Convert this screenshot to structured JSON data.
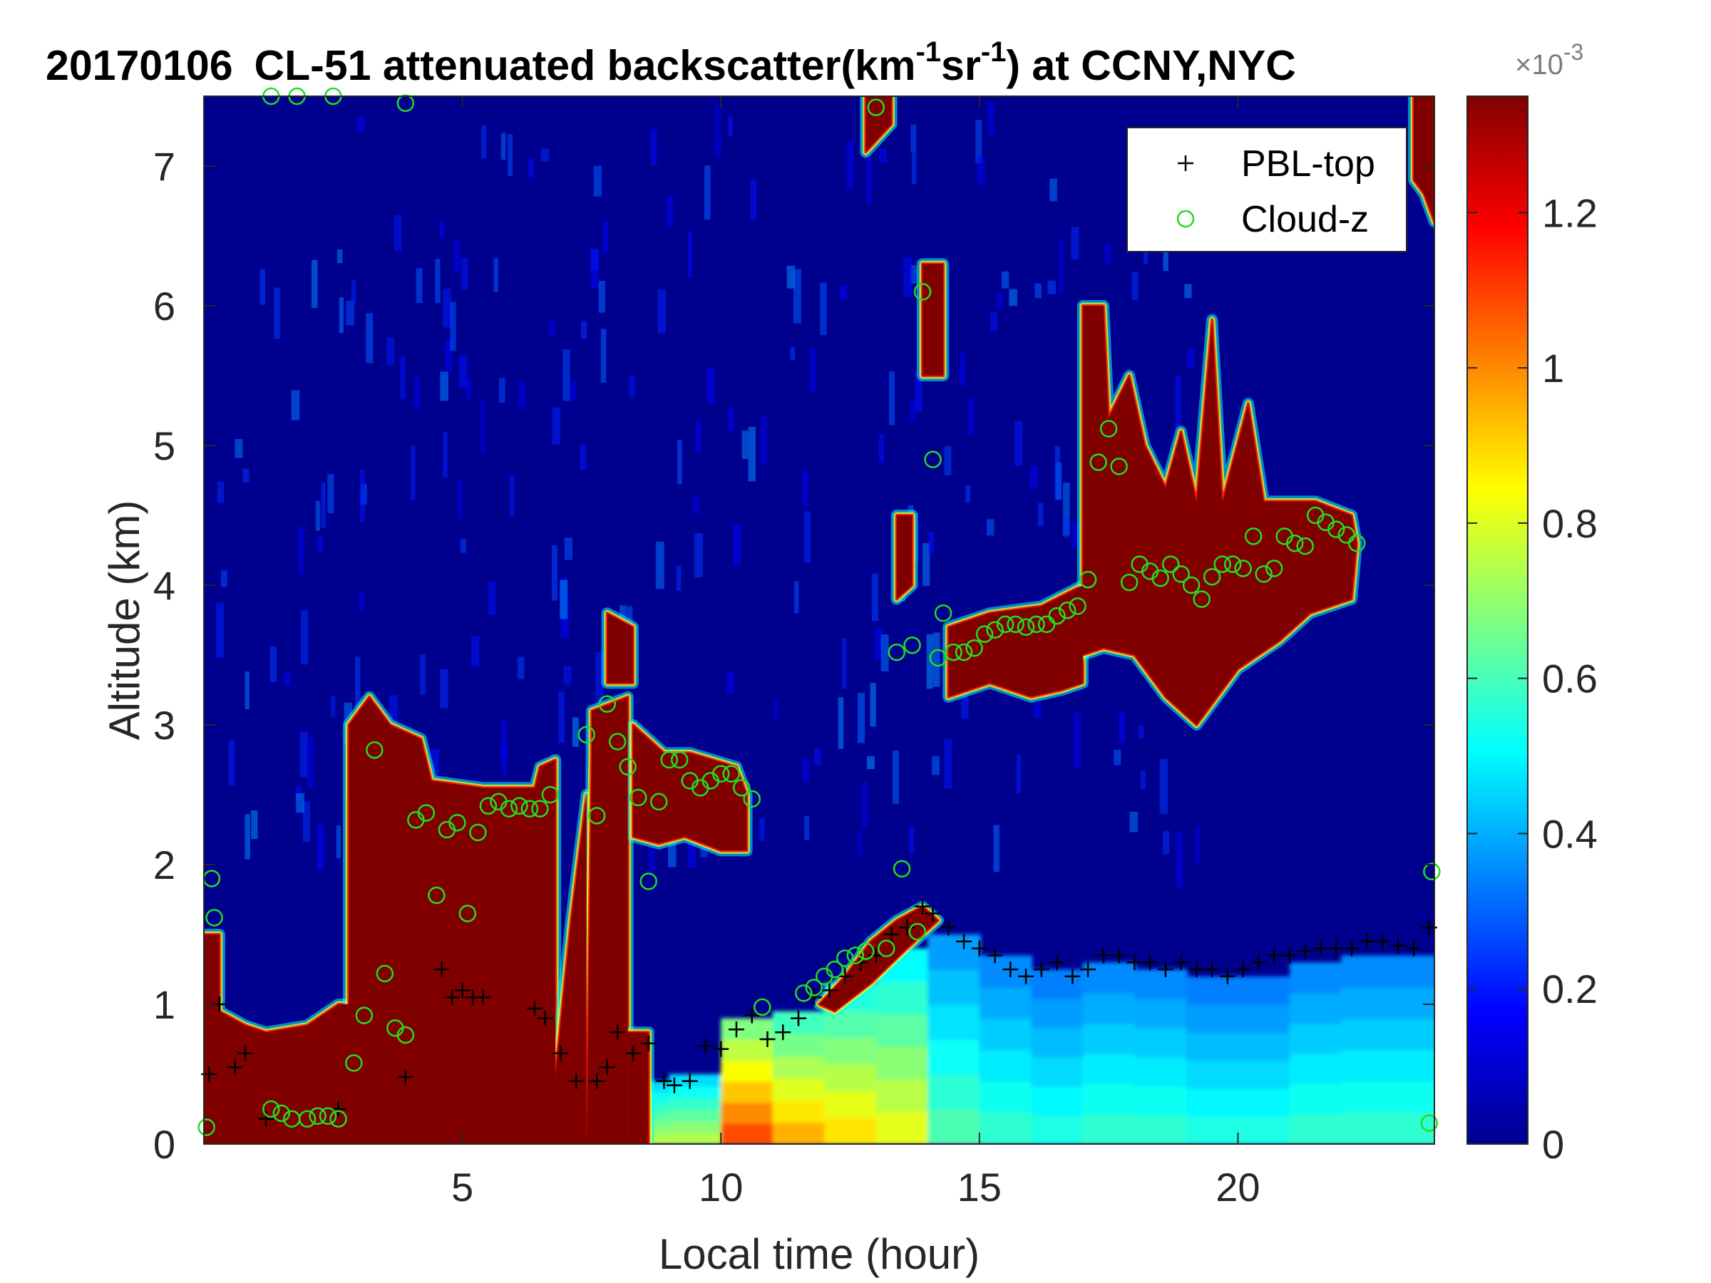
{
  "chart_data": {
    "type": "heatmap",
    "title": {
      "date": "20170106",
      "main": "CL-51 attenuated backscatter(km",
      "sup1": "-1",
      "mid": "sr",
      "sup2": "-1",
      "end": ") at CCNY,NYC"
    },
    "xlabel": "Local time (hour)",
    "ylabel": "Altitude (km)",
    "xlim": [
      0,
      23.8
    ],
    "ylim": [
      0,
      7.5
    ],
    "xticks": [
      5,
      10,
      15,
      20
    ],
    "yticks": [
      0,
      1,
      2,
      3,
      4,
      5,
      6,
      7
    ],
    "colorbar": {
      "colormap": "jet",
      "range": [
        0,
        0.00135
      ],
      "ticks": [
        0,
        0.2,
        0.4,
        0.6,
        0.8,
        1.0,
        1.2
      ],
      "tick_labels": [
        "0",
        "0.2",
        "0.4",
        "0.6",
        "0.8",
        "1",
        "1.2"
      ],
      "multiplier_base": "×10",
      "multiplier_exp": "-3"
    },
    "legend": {
      "position": "top-right",
      "entries": [
        {
          "name": "PBL-top",
          "marker": "+",
          "color": "#000000"
        },
        {
          "name": "Cloud-z",
          "marker": "o",
          "color": "#22dd22"
        }
      ]
    },
    "colors": {
      "background_low": "#00008f",
      "saturated": "#800000",
      "pbl_marker": "#000000",
      "cloud_marker": "#22dd22"
    },
    "aerosol_layer": {
      "description_free": true,
      "hours": [
        8.5,
        9.5,
        10.5,
        11.5,
        12.5,
        13.5,
        14.5,
        15.5,
        16.5,
        17.5,
        18.5,
        19.5,
        20.5,
        21.5,
        22.5,
        23.5
      ],
      "top_km": [
        0.45,
        0.5,
        0.9,
        0.95,
        1.15,
        1.4,
        1.5,
        1.35,
        1.25,
        1.3,
        1.25,
        1.2,
        1.2,
        1.3,
        1.35,
        1.35
      ],
      "intensity": [
        0.55,
        0.55,
        0.8,
        0.7,
        0.65,
        0.6,
        0.45,
        0.42,
        0.4,
        0.42,
        0.42,
        0.4,
        0.4,
        0.42,
        0.42,
        0.42
      ]
    },
    "saturated_regions": [
      {
        "points": [
          [
            0,
            0
          ],
          [
            0,
            1.5
          ],
          [
            0.3,
            1.5
          ],
          [
            0.3,
            0.95
          ],
          [
            0.8,
            0.85
          ],
          [
            1.2,
            0.8
          ],
          [
            2.0,
            0.85
          ],
          [
            2.6,
            1.0
          ],
          [
            2.8,
            1.0
          ],
          [
            2.8,
            0
          ]
        ]
      },
      {
        "points": [
          [
            2.8,
            0
          ],
          [
            2.8,
            3.0
          ],
          [
            3.2,
            3.2
          ],
          [
            3.6,
            3.0
          ],
          [
            4.2,
            2.9
          ],
          [
            4.4,
            2.6
          ],
          [
            5.4,
            2.55
          ],
          [
            6.4,
            2.55
          ],
          [
            6.5,
            2.7
          ],
          [
            6.8,
            2.75
          ],
          [
            6.8,
            0
          ]
        ]
      },
      {
        "points": [
          [
            6.8,
            0
          ],
          [
            6.8,
            0.5
          ],
          [
            7.1,
            1.6
          ],
          [
            7.4,
            2.5
          ],
          [
            7.4,
            0
          ]
        ]
      },
      {
        "points": [
          [
            7.4,
            0
          ],
          [
            7.5,
            2.8
          ],
          [
            7.5,
            3.1
          ],
          [
            8.2,
            3.2
          ],
          [
            8.2,
            0
          ]
        ]
      },
      {
        "points": [
          [
            8.2,
            0
          ],
          [
            8.2,
            0.8
          ],
          [
            8.6,
            0.8
          ],
          [
            8.6,
            0
          ]
        ]
      },
      {
        "points": [
          [
            7.8,
            3.5
          ],
          [
            7.8,
            3.8
          ],
          [
            8.3,
            3.7
          ],
          [
            8.3,
            3.3
          ],
          [
            7.8,
            3.3
          ]
        ]
      },
      {
        "points": [
          [
            8.3,
            3.0
          ],
          [
            8.9,
            2.8
          ],
          [
            9.4,
            2.8
          ],
          [
            10.3,
            2.7
          ],
          [
            10.5,
            2.5
          ],
          [
            10.5,
            2.1
          ],
          [
            10.0,
            2.1
          ],
          [
            9.3,
            2.2
          ],
          [
            8.8,
            2.15
          ],
          [
            8.3,
            2.2
          ]
        ]
      },
      {
        "points": [
          [
            11.9,
            1.0
          ],
          [
            12.4,
            1.2
          ],
          [
            12.9,
            1.45
          ],
          [
            13.4,
            1.6
          ],
          [
            13.9,
            1.7
          ],
          [
            14.2,
            1.6
          ],
          [
            13.6,
            1.4
          ],
          [
            12.9,
            1.15
          ],
          [
            12.2,
            0.95
          ]
        ]
      },
      {
        "points": [
          [
            12.8,
            7.5
          ],
          [
            12.8,
            7.1
          ],
          [
            13.3,
            7.3
          ],
          [
            13.3,
            7.5
          ]
        ]
      },
      {
        "points": [
          [
            13.4,
            4.5
          ],
          [
            13.4,
            3.9
          ],
          [
            13.7,
            4.0
          ],
          [
            13.7,
            4.5
          ]
        ]
      },
      {
        "points": [
          [
            13.9,
            6.3
          ],
          [
            13.9,
            5.5
          ],
          [
            14.3,
            5.5
          ],
          [
            14.3,
            6.3
          ]
        ]
      },
      {
        "points": [
          [
            14.4,
            3.7
          ],
          [
            15.2,
            3.8
          ],
          [
            16.2,
            3.85
          ],
          [
            17.0,
            4.0
          ],
          [
            17.0,
            3.3
          ],
          [
            16.6,
            3.25
          ],
          [
            16.0,
            3.2
          ],
          [
            15.2,
            3.3
          ],
          [
            14.4,
            3.2
          ]
        ]
      },
      {
        "points": [
          [
            17.0,
            4.0
          ],
          [
            17.0,
            6.0
          ],
          [
            17.4,
            6.0
          ],
          [
            17.5,
            5.2
          ],
          [
            17.9,
            5.5
          ],
          [
            18.2,
            5.0
          ],
          [
            18.6,
            4.7
          ],
          [
            18.9,
            5.1
          ],
          [
            19.2,
            4.6
          ],
          [
            19.5,
            5.9
          ],
          [
            19.7,
            4.6
          ],
          [
            20.2,
            5.3
          ],
          [
            20.5,
            4.6
          ],
          [
            21.0,
            4.6
          ],
          [
            21.5,
            4.6
          ],
          [
            22.2,
            4.5
          ],
          [
            22.3,
            4.3
          ],
          [
            22.2,
            3.9
          ],
          [
            21.4,
            3.8
          ],
          [
            20.8,
            3.6
          ],
          [
            20.0,
            3.4
          ],
          [
            19.2,
            3.0
          ],
          [
            18.6,
            3.2
          ],
          [
            18.0,
            3.5
          ],
          [
            17.4,
            3.55
          ],
          [
            17.0,
            3.5
          ]
        ]
      },
      {
        "points": [
          [
            23.4,
            7.5
          ],
          [
            23.4,
            6.9
          ],
          [
            23.6,
            6.8
          ],
          [
            23.8,
            6.6
          ],
          [
            23.8,
            7.5
          ]
        ]
      }
    ],
    "series": [
      {
        "name": "PBL-top",
        "marker": "+",
        "x": [
          0.1,
          0.3,
          0.6,
          0.8,
          1.2,
          2.6,
          3.9,
          4.6,
          4.8,
          5.0,
          5.2,
          5.4,
          6.4,
          6.6,
          6.9,
          7.2,
          7.6,
          7.8,
          8.0,
          8.3,
          8.6,
          8.9,
          9.1,
          9.4,
          9.7,
          10.0,
          10.3,
          10.6,
          10.9,
          11.2,
          11.5,
          11.8,
          12.1,
          12.4,
          12.7,
          13.0,
          13.3,
          13.6,
          13.9,
          14.1,
          14.4,
          14.7,
          15.0,
          15.3,
          15.6,
          15.9,
          16.2,
          16.5,
          16.8,
          17.1,
          17.4,
          17.7,
          18.0,
          18.3,
          18.6,
          18.9,
          19.2,
          19.5,
          19.8,
          20.1,
          20.4,
          20.7,
          21.0,
          21.3,
          21.6,
          21.9,
          22.2,
          22.5,
          22.8,
          23.1,
          23.4,
          23.7
        ],
        "y": [
          0.5,
          1.0,
          0.55,
          0.65,
          0.18,
          0.25,
          0.48,
          1.25,
          1.05,
          1.1,
          1.05,
          1.05,
          0.97,
          0.9,
          0.65,
          0.45,
          0.45,
          0.55,
          0.8,
          0.65,
          0.72,
          0.45,
          0.42,
          0.45,
          0.7,
          0.68,
          0.82,
          0.92,
          0.75,
          0.8,
          0.9,
          1.05,
          1.1,
          1.2,
          1.3,
          1.35,
          1.5,
          1.55,
          1.7,
          1.65,
          1.55,
          1.45,
          1.4,
          1.35,
          1.25,
          1.2,
          1.25,
          1.3,
          1.2,
          1.25,
          1.35,
          1.35,
          1.3,
          1.3,
          1.25,
          1.3,
          1.25,
          1.25,
          1.2,
          1.25,
          1.3,
          1.35,
          1.35,
          1.38,
          1.4,
          1.4,
          1.4,
          1.45,
          1.45,
          1.42,
          1.4,
          1.55
        ]
      },
      {
        "name": "Cloud-z",
        "marker": "o",
        "x": [
          0.05,
          0.15,
          0.2,
          1.3,
          1.5,
          1.7,
          2.0,
          2.2,
          2.4,
          2.6,
          2.9,
          3.1,
          3.3,
          3.5,
          3.7,
          3.9,
          4.1,
          4.3,
          4.5,
          4.7,
          4.9,
          5.1,
          5.3,
          5.5,
          5.7,
          5.9,
          6.1,
          6.3,
          6.5,
          6.7,
          1.3,
          1.8,
          2.5,
          3.9,
          7.4,
          7.6,
          7.8,
          8.0,
          8.2,
          8.4,
          8.6,
          8.8,
          9.0,
          9.2,
          9.4,
          9.6,
          9.8,
          10.0,
          10.2,
          10.4,
          10.6,
          10.8,
          11.6,
          11.8,
          12.0,
          12.2,
          12.4,
          12.6,
          12.8,
          13.0,
          13.2,
          13.5,
          13.7,
          13.9,
          14.1,
          14.3,
          14.5,
          14.7,
          14.9,
          15.1,
          15.3,
          15.5,
          15.7,
          15.9,
          16.1,
          16.3,
          16.5,
          16.7,
          16.9,
          17.1,
          17.3,
          17.5,
          17.7,
          17.9,
          18.1,
          18.3,
          18.5,
          18.7,
          18.9,
          19.1,
          19.3,
          19.5,
          19.7,
          19.9,
          20.1,
          20.3,
          20.5,
          20.7,
          20.9,
          21.1,
          21.3,
          21.5,
          21.7,
          21.9,
          22.1,
          22.3,
          13.8,
          14.2,
          13.4,
          23.7,
          23.75
        ],
        "y": [
          0.12,
          1.9,
          1.62,
          0.25,
          0.22,
          0.18,
          0.18,
          0.2,
          0.2,
          0.18,
          0.58,
          0.92,
          2.82,
          1.22,
          0.83,
          0.78,
          2.32,
          2.37,
          1.78,
          2.25,
          2.3,
          1.65,
          2.23,
          2.42,
          2.45,
          2.4,
          2.42,
          2.4,
          2.4,
          2.5,
          7.5,
          7.5,
          7.5,
          7.45,
          2.93,
          2.35,
          3.15,
          2.88,
          2.7,
          2.48,
          1.88,
          2.45,
          2.75,
          2.75,
          2.6,
          2.55,
          2.6,
          2.65,
          2.65,
          2.55,
          2.47,
          0.98,
          1.08,
          1.12,
          1.2,
          1.25,
          1.33,
          1.35,
          1.38,
          7.42,
          1.4,
          1.97,
          3.57,
          6.1,
          4.9,
          3.8,
          3.52,
          3.52,
          3.55,
          3.65,
          3.68,
          3.72,
          3.72,
          3.7,
          3.72,
          3.72,
          3.78,
          3.82,
          3.85,
          4.04,
          4.88,
          5.12,
          4.85,
          4.02,
          4.15,
          4.1,
          4.05,
          4.15,
          4.08,
          4.0,
          3.9,
          4.06,
          4.15,
          4.15,
          4.12,
          4.35,
          4.08,
          4.12,
          4.35,
          4.3,
          4.28,
          4.5,
          4.45,
          4.4,
          4.36,
          4.3,
          1.52,
          3.48,
          3.52,
          0.15,
          1.95
        ]
      }
    ]
  }
}
